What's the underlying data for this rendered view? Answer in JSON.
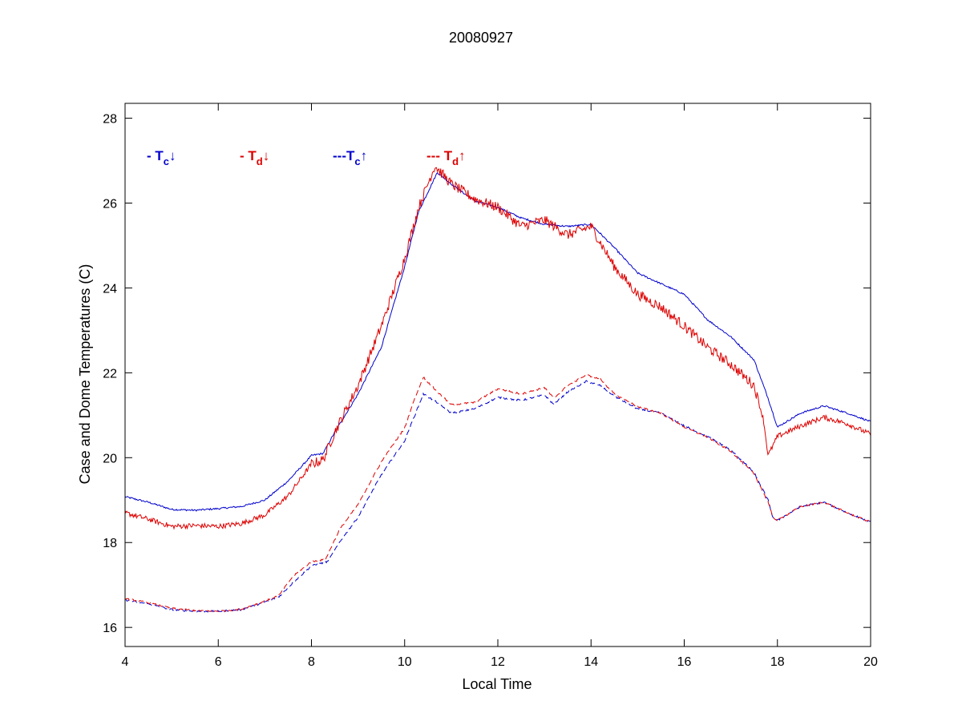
{
  "colors": {
    "case": "#0000cc",
    "dome": "#dd0000",
    "axis": "#000000",
    "background": "#ffffff"
  },
  "chart_data": {
    "type": "line",
    "title": "20080927",
    "xlabel": "Local Time",
    "ylabel": "Case and Dome Temperatures (C)",
    "xlim": [
      4,
      20
    ],
    "ylim": [
      15.55,
      28.35
    ],
    "xticks": [
      4,
      6,
      8,
      10,
      12,
      14,
      16,
      18,
      20
    ],
    "yticks": [
      16,
      18,
      20,
      22,
      24,
      26,
      28
    ],
    "grid": false,
    "legend_position": "top-left, inside plot area, horizontal",
    "series": [
      {
        "name": "- Tc↓",
        "legend": {
          "prefix": "- T",
          "sub": "c",
          "arrow": "↓"
        },
        "color": "#0000cc",
        "style": "solid",
        "noise": 0.02,
        "x": [
          4,
          4.5,
          5,
          5.5,
          6,
          6.5,
          7,
          7.5,
          8,
          8.25,
          8.5,
          9,
          9.5,
          10,
          10.3,
          10.7,
          11,
          11.5,
          12,
          12.5,
          13,
          13.5,
          14,
          14.5,
          15,
          15.5,
          16,
          16.5,
          17,
          17.5,
          17.8,
          18,
          18.5,
          19,
          19.5,
          20
        ],
        "y": [
          19.08,
          18.95,
          18.78,
          18.76,
          18.8,
          18.85,
          19.0,
          19.45,
          20.05,
          20.1,
          20.6,
          21.5,
          22.6,
          24.5,
          25.8,
          26.72,
          26.45,
          26.05,
          25.9,
          25.65,
          25.5,
          25.45,
          25.5,
          24.95,
          24.35,
          24.1,
          23.85,
          23.25,
          22.85,
          22.3,
          21.4,
          20.72,
          21.05,
          21.22,
          21.05,
          20.85
        ]
      },
      {
        "name": "- Td↓",
        "legend": {
          "prefix": "- T",
          "sub": "d",
          "arrow": "↓"
        },
        "color": "#dd0000",
        "style": "solid",
        "noise": 0.12,
        "x": [
          4,
          4.5,
          5,
          5.5,
          6,
          6.5,
          7,
          7.5,
          8,
          8.25,
          8.5,
          9,
          9.5,
          10,
          10.3,
          10.65,
          11,
          11.5,
          12,
          12.5,
          13,
          13.5,
          14,
          14.5,
          15,
          15.5,
          16,
          16.5,
          17,
          17.5,
          17.7,
          17.8,
          18,
          18.5,
          19,
          19.5,
          20
        ],
        "y": [
          18.7,
          18.55,
          18.38,
          18.4,
          18.38,
          18.45,
          18.65,
          19.1,
          19.85,
          19.95,
          20.6,
          21.7,
          23.1,
          24.7,
          25.9,
          26.88,
          26.45,
          26.1,
          25.9,
          25.45,
          25.6,
          25.25,
          25.45,
          24.5,
          23.85,
          23.55,
          23.1,
          22.6,
          22.2,
          21.7,
          20.9,
          20.05,
          20.5,
          20.75,
          20.95,
          20.8,
          20.55
        ]
      },
      {
        "name": "---Tc↑",
        "legend": {
          "prefix": "---T",
          "sub": "c",
          "arrow": "↑"
        },
        "color": "#0000cc",
        "style": "dashed",
        "noise": 0.02,
        "x": [
          4,
          4.5,
          5,
          5.5,
          6,
          6.5,
          7,
          7.3,
          7.6,
          8,
          8.35,
          8.6,
          9,
          9.5,
          10,
          10.2,
          10.4,
          10.7,
          11,
          11.5,
          12,
          12.5,
          13,
          13.2,
          13.5,
          13.9,
          14.2,
          14.5,
          15,
          15.5,
          16,
          16.5,
          17,
          17.5,
          17.8,
          17.9,
          18,
          18.5,
          19,
          19.5,
          20
        ],
        "y": [
          16.65,
          16.55,
          16.42,
          16.38,
          16.38,
          16.42,
          16.6,
          16.72,
          17.05,
          17.45,
          17.55,
          18.0,
          18.6,
          19.6,
          20.4,
          20.95,
          21.5,
          21.3,
          21.05,
          21.15,
          21.42,
          21.35,
          21.48,
          21.25,
          21.55,
          21.8,
          21.7,
          21.45,
          21.15,
          21.05,
          20.75,
          20.5,
          20.18,
          19.65,
          19.0,
          18.6,
          18.52,
          18.85,
          18.95,
          18.7,
          18.48
        ]
      },
      {
        "name": "--- Td↑",
        "legend": {
          "prefix": "--- T",
          "sub": "d",
          "arrow": "↑"
        },
        "color": "#dd0000",
        "style": "dashed",
        "noise": 0.02,
        "x": [
          4,
          4.5,
          5,
          5.5,
          6,
          6.5,
          7,
          7.3,
          7.6,
          8,
          8.3,
          8.6,
          9,
          9.5,
          10,
          10.2,
          10.4,
          10.7,
          11,
          11.5,
          12,
          12.5,
          13,
          13.2,
          13.5,
          13.9,
          14.2,
          14.5,
          15,
          15.5,
          16,
          16.5,
          17,
          17.5,
          17.8,
          17.9,
          18,
          18.5,
          19,
          19.5,
          20
        ],
        "y": [
          16.68,
          16.58,
          16.45,
          16.4,
          16.38,
          16.43,
          16.62,
          16.75,
          17.2,
          17.55,
          17.6,
          18.3,
          18.9,
          19.9,
          20.7,
          21.35,
          21.9,
          21.55,
          21.25,
          21.3,
          21.62,
          21.5,
          21.65,
          21.4,
          21.7,
          21.95,
          21.85,
          21.5,
          21.2,
          21.05,
          20.72,
          20.48,
          20.15,
          19.62,
          18.95,
          18.6,
          18.52,
          18.85,
          18.95,
          18.7,
          18.48
        ]
      }
    ]
  }
}
